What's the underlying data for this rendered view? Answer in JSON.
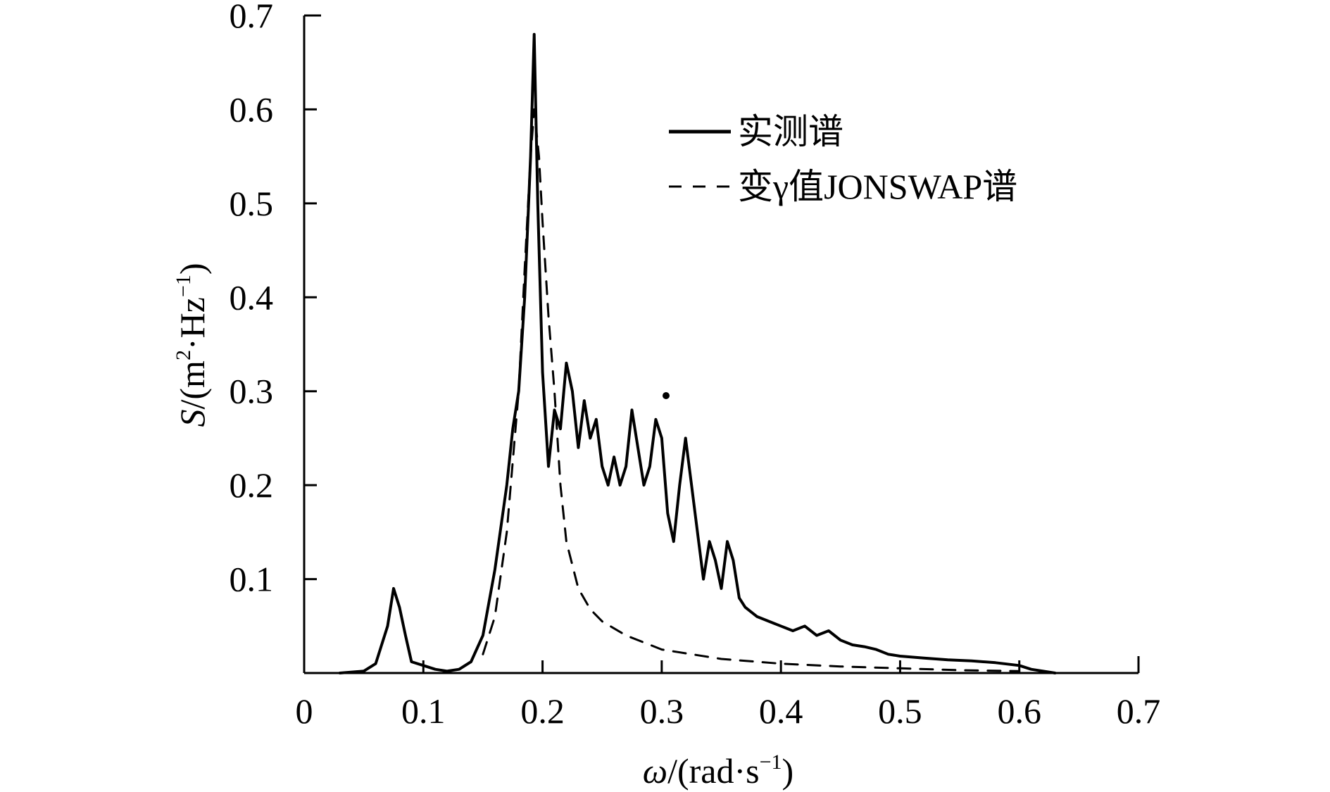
{
  "chart_data": {
    "type": "line",
    "title": "",
    "xlabel": {
      "var": "ω",
      "unit_pre": "/(rad·s",
      "unit_exp": "−1",
      "unit_post": ")"
    },
    "ylabel": {
      "var": "S",
      "unit_pre": "/(m",
      "unit_exp1": "2",
      "unit_mid": "·Hz",
      "unit_exp2": "−1",
      "unit_post": ")"
    },
    "xlim": [
      0,
      0.7
    ],
    "ylim": [
      0,
      0.7
    ],
    "x_ticks": [
      "0",
      "0.1",
      "0.2",
      "0.3",
      "0.4",
      "0.5",
      "0.6",
      "0.7"
    ],
    "y_ticks": [
      "0.1",
      "0.2",
      "0.3",
      "0.4",
      "0.5",
      "0.6",
      "0.7"
    ],
    "grid": false,
    "legend_position": "top-right",
    "series": [
      {
        "name": "实测谱",
        "style": "solid",
        "color": "#000000",
        "x": [
          0.03,
          0.05,
          0.06,
          0.07,
          0.075,
          0.08,
          0.085,
          0.09,
          0.1,
          0.11,
          0.12,
          0.13,
          0.14,
          0.15,
          0.16,
          0.17,
          0.175,
          0.18,
          0.185,
          0.19,
          0.193,
          0.196,
          0.2,
          0.205,
          0.21,
          0.215,
          0.22,
          0.225,
          0.23,
          0.235,
          0.24,
          0.245,
          0.25,
          0.255,
          0.26,
          0.265,
          0.27,
          0.275,
          0.28,
          0.285,
          0.29,
          0.295,
          0.3,
          0.305,
          0.31,
          0.315,
          0.32,
          0.325,
          0.33,
          0.335,
          0.34,
          0.345,
          0.35,
          0.355,
          0.36,
          0.365,
          0.37,
          0.38,
          0.39,
          0.4,
          0.41,
          0.42,
          0.43,
          0.44,
          0.45,
          0.46,
          0.47,
          0.48,
          0.49,
          0.5,
          0.52,
          0.54,
          0.56,
          0.58,
          0.6,
          0.61,
          0.63
        ],
        "y": [
          0.0,
          0.002,
          0.01,
          0.05,
          0.09,
          0.07,
          0.04,
          0.012,
          0.008,
          0.004,
          0.002,
          0.004,
          0.012,
          0.04,
          0.11,
          0.2,
          0.26,
          0.3,
          0.4,
          0.55,
          0.68,
          0.5,
          0.32,
          0.22,
          0.28,
          0.26,
          0.33,
          0.3,
          0.24,
          0.29,
          0.25,
          0.27,
          0.22,
          0.2,
          0.23,
          0.2,
          0.22,
          0.28,
          0.24,
          0.2,
          0.22,
          0.27,
          0.25,
          0.17,
          0.14,
          0.2,
          0.25,
          0.2,
          0.15,
          0.1,
          0.14,
          0.12,
          0.09,
          0.14,
          0.12,
          0.08,
          0.07,
          0.06,
          0.055,
          0.05,
          0.045,
          0.05,
          0.04,
          0.045,
          0.035,
          0.03,
          0.028,
          0.025,
          0.02,
          0.018,
          0.016,
          0.014,
          0.013,
          0.011,
          0.008,
          0.004,
          0.0
        ]
      },
      {
        "name": "变γ值JONSWAP谱",
        "style": "dashed",
        "color": "#000000",
        "x": [
          0.15,
          0.16,
          0.17,
          0.18,
          0.185,
          0.19,
          0.193,
          0.197,
          0.2,
          0.205,
          0.21,
          0.215,
          0.22,
          0.23,
          0.24,
          0.25,
          0.27,
          0.3,
          0.35,
          0.4,
          0.45,
          0.5,
          0.55,
          0.6
        ],
        "y": [
          0.02,
          0.06,
          0.15,
          0.3,
          0.43,
          0.55,
          0.6,
          0.55,
          0.48,
          0.38,
          0.3,
          0.2,
          0.14,
          0.09,
          0.068,
          0.055,
          0.04,
          0.025,
          0.015,
          0.01,
          0.007,
          0.005,
          0.003,
          0.002
        ]
      }
    ],
    "annotations": [
      "·"
    ]
  }
}
